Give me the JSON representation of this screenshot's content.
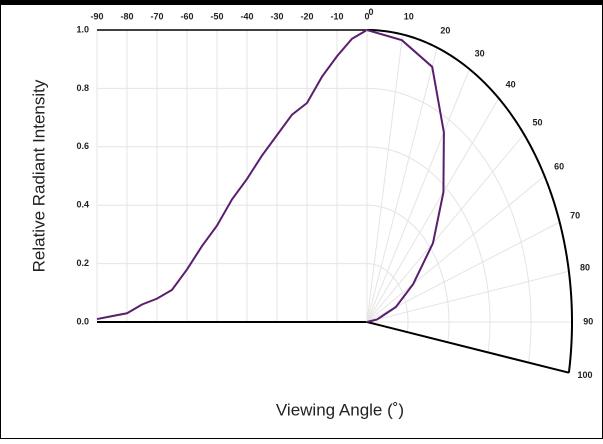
{
  "chart_data": [
    {
      "type": "line",
      "y_label": "Relative Radiant Intensity",
      "x_label": "Viewing Angle (˚)",
      "x": [
        -90,
        -85,
        -80,
        -75,
        -70,
        -65,
        -60,
        -55,
        -50,
        -45,
        -40,
        -35,
        -30,
        -25,
        -20,
        -15,
        -10,
        -5,
        0
      ],
      "series": [
        {
          "color": "#5a1e6e",
          "values": [
            0.01,
            0.02,
            0.03,
            0.06,
            0.08,
            0.11,
            0.18,
            0.26,
            0.33,
            0.42,
            0.49,
            0.57,
            0.64,
            0.71,
            0.75,
            0.84,
            0.91,
            0.97,
            1.0
          ]
        }
      ],
      "xlim": [
        -90,
        0
      ],
      "xticks": [
        -90,
        -80,
        -70,
        -60,
        -50,
        -40,
        -30,
        -20,
        -10,
        0
      ],
      "ylim": [
        0,
        1
      ],
      "yticks": [
        {
          "value": 0,
          "label": "0.0"
        },
        0.2,
        0.4,
        0.6,
        0.8,
        {
          "value": 1,
          "label": "1.0"
        }
      ],
      "grid": true
    },
    {
      "type": "polar",
      "theta": [
        0,
        10,
        20,
        30,
        40,
        50,
        60,
        70,
        80,
        90
      ],
      "series": [
        {
          "color": "#5a1e6e",
          "values": [
            1.0,
            0.98,
            0.93,
            0.75,
            0.58,
            0.42,
            0.26,
            0.15,
            0.05,
            0
          ]
        }
      ],
      "thetalim": [
        0,
        100
      ],
      "thetaticks": [
        0,
        10,
        20,
        30,
        40,
        50,
        60,
        70,
        80,
        90,
        100
      ],
      "rlim": [
        0,
        1
      ],
      "rticks": [
        0.2,
        0.4,
        0.6,
        0.8
      ],
      "grid": true
    }
  ]
}
